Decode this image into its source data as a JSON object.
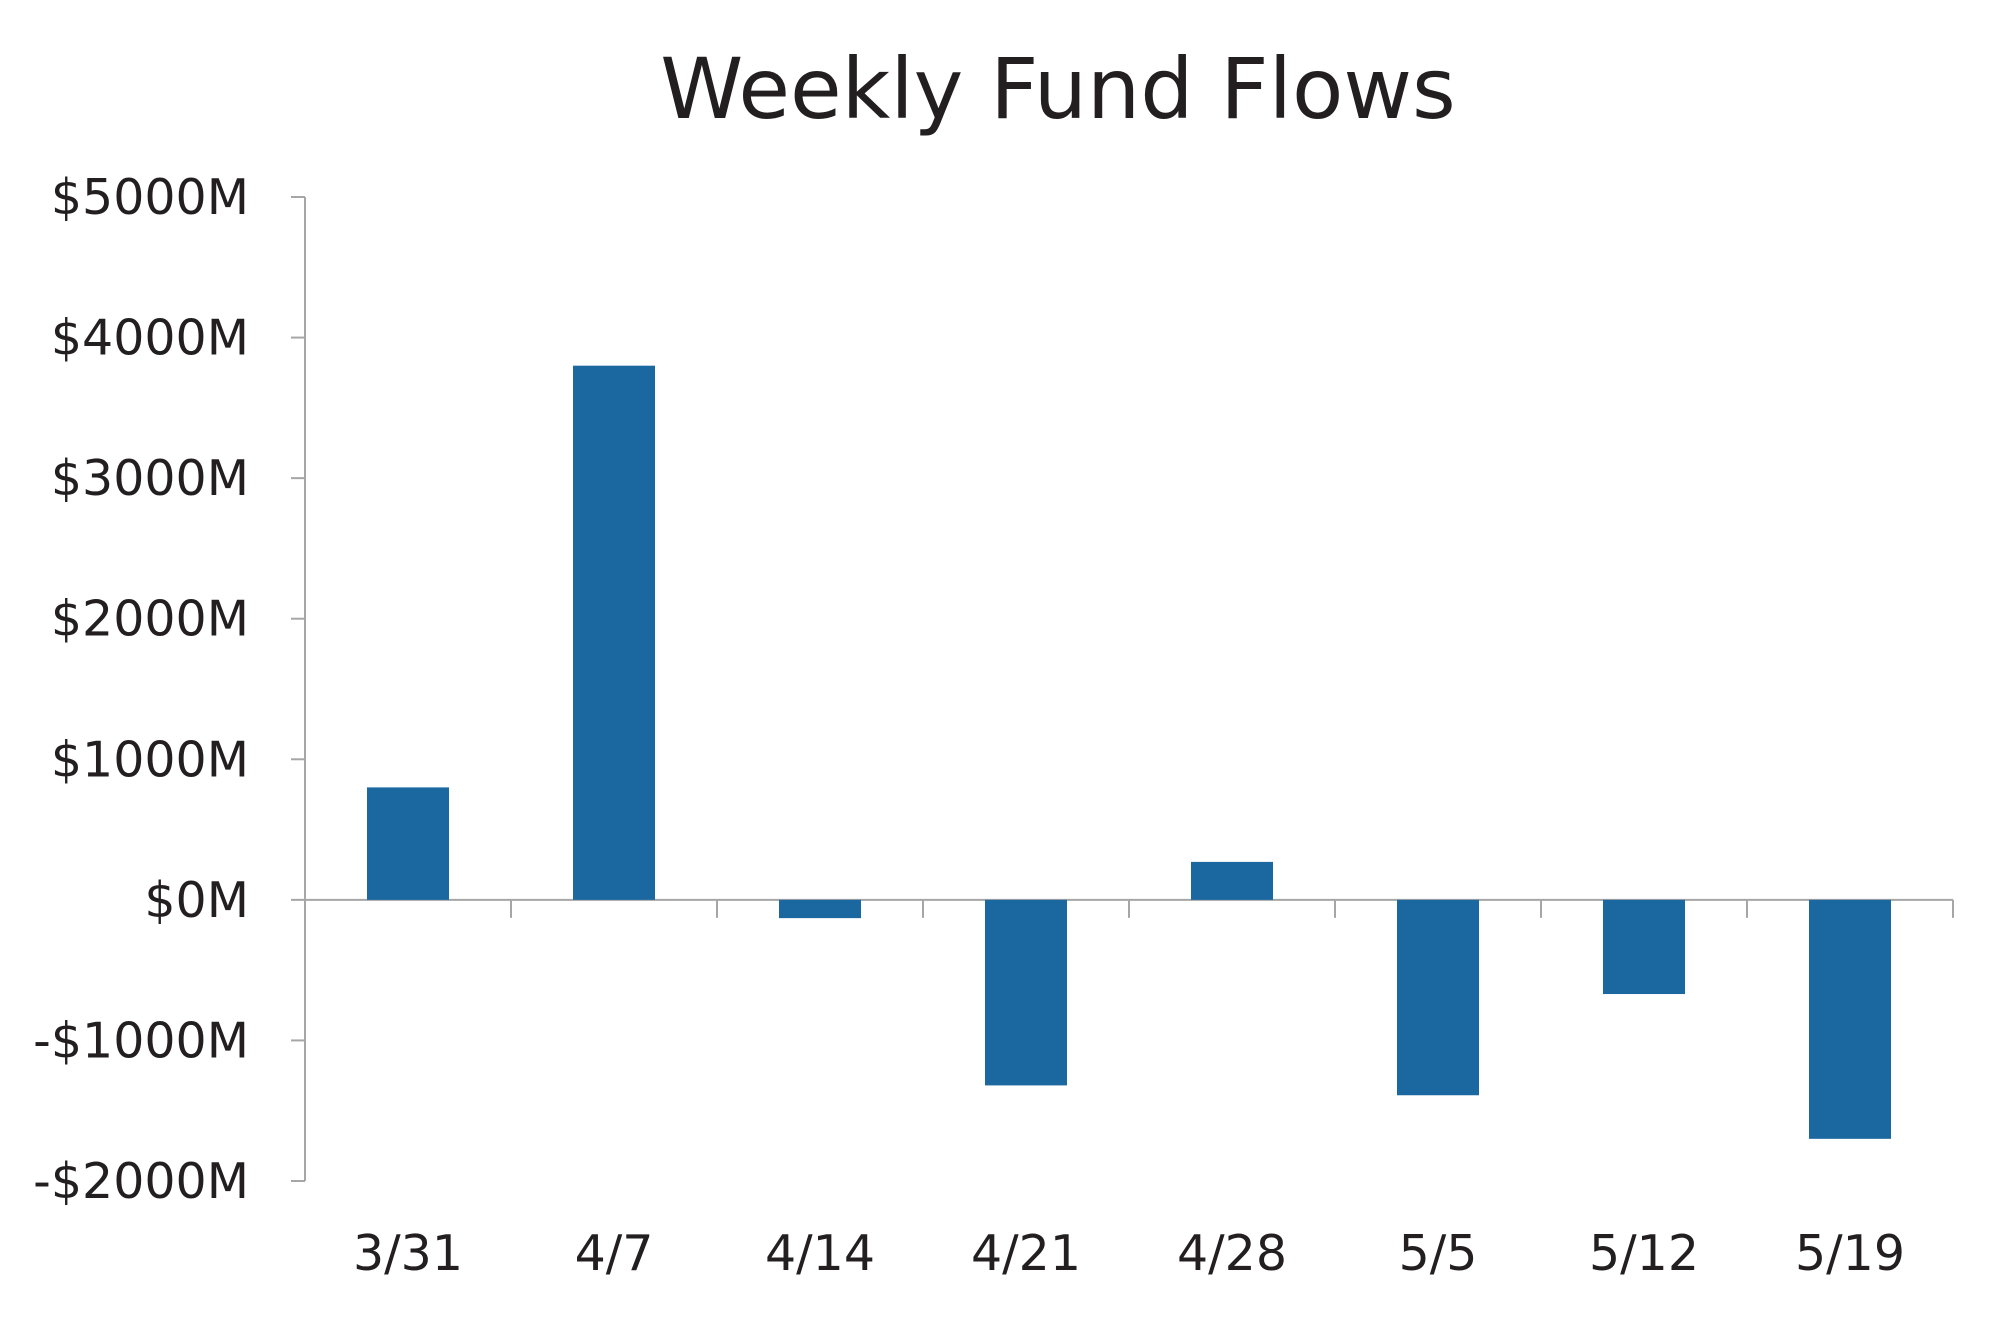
{
  "chart_data": {
    "type": "bar",
    "title": "Weekly Fund Flows",
    "xlabel": "",
    "ylabel": "",
    "categories": [
      "3/31",
      "4/7",
      "4/14",
      "4/21",
      "4/28",
      "5/5",
      "5/12",
      "5/19"
    ],
    "values": [
      800,
      3800,
      -130,
      -1320,
      270,
      -1390,
      -670,
      -1700
    ],
    "ylim": [
      -2000,
      5000
    ],
    "yticks": [
      5000,
      4000,
      3000,
      2000,
      1000,
      0,
      -1000,
      -2000
    ],
    "ytick_labels": [
      "$5000M",
      "$4000M",
      "$3000M",
      "$2000M",
      "$1000M",
      "$0M",
      "-$1000M",
      "-$2000M"
    ],
    "grid": false,
    "legend": "none",
    "colors": {
      "bar": "#1b67a0",
      "axis": "#a6a6a6",
      "text": "#231f20"
    }
  }
}
